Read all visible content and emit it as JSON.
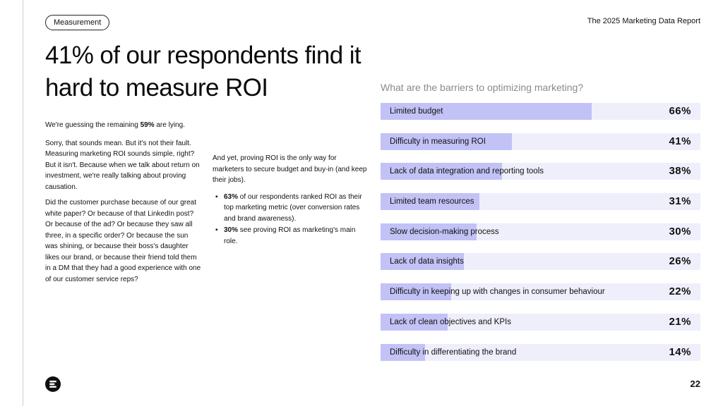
{
  "header": {
    "tag_label": "Measurement",
    "report_title": "The 2025 Marketing Data Report"
  },
  "headline": "41% of our respondents find it hard to measure ROI",
  "body": {
    "intro_prefix": "We're guessing the remaining ",
    "intro_number": "59%",
    "intro_suffix": " are lying.",
    "para1": "Sorry, that sounds mean. But it's not their fault. Measuring marketing ROI sounds simple, right? But it isn't. Because when we talk about return on investment, we're really talking about proving causation.",
    "para2": "Did the customer purchase because of our great white paper? Or because of that LinkedIn post? Or because of the ad? Or because they saw all three, in a specific order? Or because the sun was shining, or because their boss's daughter likes our brand, or because their friend told them in a DM that they had a good experience with one of our customer service reps?",
    "col2_para": "And yet, proving ROI is the only way for marketers to secure budget and buy-in (and keep their jobs).",
    "bullets": [
      {
        "bold": "63%",
        "text": " of our respondents ranked ROI as their top marketing metric (over conversion rates and brand awareness)."
      },
      {
        "bold": "30%",
        "text": " see proving ROI as marketing's main role."
      }
    ]
  },
  "chart_data": {
    "type": "bar",
    "orientation": "horizontal",
    "title": "What are the barriers to optimizing marketing?",
    "categories": [
      "Limited budget",
      "Difficulty in measuring ROI",
      "Lack of data integration and reporting tools",
      "Limited team resources",
      "Slow decision-making process",
      "Lack of data insights",
      "Difficulty in keeping up with changes in consumer behaviour",
      "Lack of clean objectives and KPIs",
      "Difficulty in differentiating the brand"
    ],
    "values": [
      66,
      41,
      38,
      31,
      30,
      26,
      22,
      21,
      14
    ],
    "value_labels": [
      "66%",
      "41%",
      "38%",
      "31%",
      "30%",
      "26%",
      "22%",
      "21%",
      "14%"
    ],
    "xlim": [
      0,
      100
    ],
    "unit": "%",
    "bar_color": "#c2c2f6",
    "track_color": "#eeeffb"
  },
  "footer": {
    "page_number": "22",
    "logo_icon": "brand-logo-icon"
  }
}
